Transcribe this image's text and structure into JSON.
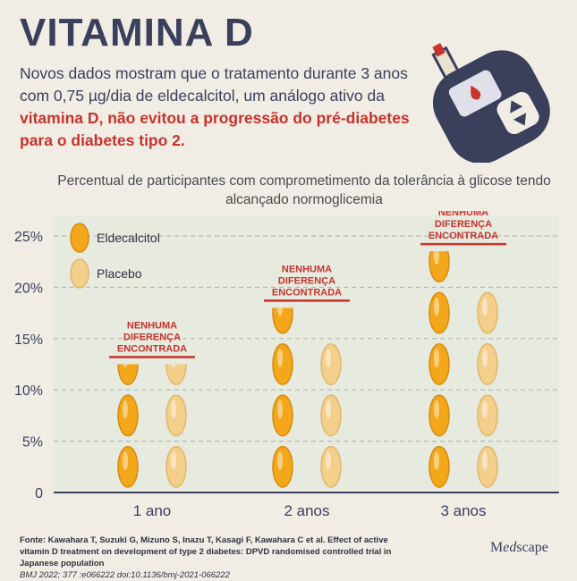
{
  "title": "VITAMINA D",
  "intro": {
    "part1": "Novos dados mostram que o tratamento durante 3 anos com 0,75 µg/dia de eldecalcitol, um análogo ativo da ",
    "highlight": "vitamina D, não evitou a progressão do pré-diabetes para o diabetes tipo 2."
  },
  "chart_data": {
    "type": "bar",
    "title": "Percentual de participantes com comprometimento da tolerância à glicose tendo alcançado normoglicemia",
    "categories": [
      "1 ano",
      "2 anos",
      "3 anos"
    ],
    "series": [
      {
        "name": "Eldecalcitol",
        "values": [
          12.5,
          18,
          23.5
        ],
        "color": "#f3a81b"
      },
      {
        "name": "Placebo",
        "values": [
          12.5,
          14.5,
          20
        ],
        "color": "#f4cf8b"
      }
    ],
    "ylim": [
      0,
      27
    ],
    "yticks": [
      "0",
      "5%",
      "10%",
      "15%",
      "20%",
      "25%"
    ],
    "ytick_values": [
      0,
      5,
      10,
      15,
      20,
      25
    ],
    "annotations": [
      "NENHUMA DIFERENÇA ENCONTRADA",
      "NENHUMA DIFERENÇA ENCONTRADA",
      "NENHUMA DIFERENÇA ENCONTRADA"
    ],
    "grid": true,
    "legend_position": "top-left",
    "plot_background": "#e6eadf",
    "annotation_color": "#c8332c"
  },
  "footer": {
    "text": "Fonte: Kawahara T, Suzuki G, Mizuno S, Inazu T, Kasagi F, Kawahara C et al. Effect of active vitamin D treatment on development of type 2 diabetes: DPVD randomised controlled trial in Japanese population",
    "citation": "BMJ 2022; 377 :e066222 doi:10.1136/bmj-2021-066222"
  },
  "brand": {
    "prefix": "M",
    "italic": "ed",
    "suffix": "scape"
  }
}
